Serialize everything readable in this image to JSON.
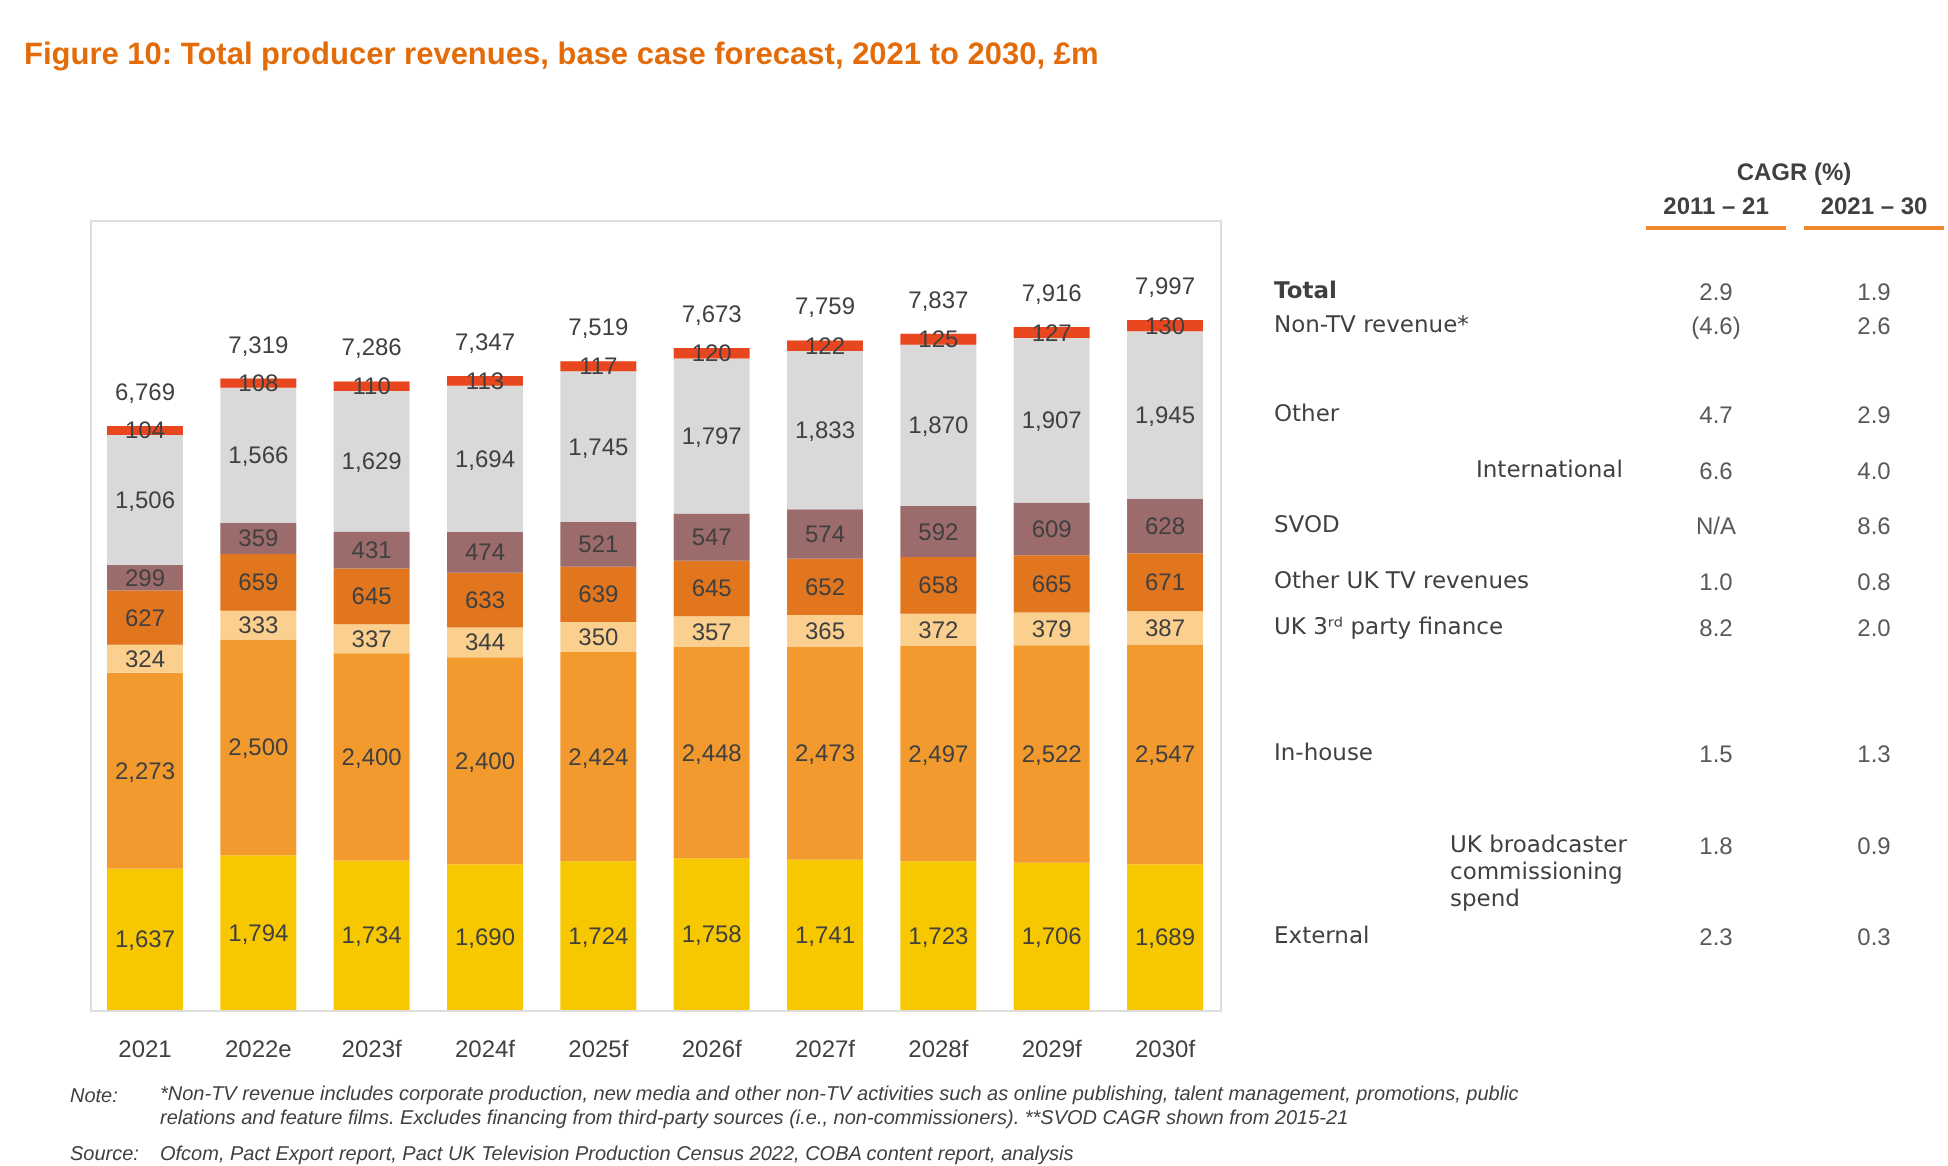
{
  "chart_data": {
    "type": "bar",
    "stacked": true,
    "title": "Figure 10: Total producer revenues, base case forecast, 2021 to 2030, £m",
    "categories": [
      "2021",
      "2022e",
      "2023f",
      "2024f",
      "2025f",
      "2026f",
      "2027f",
      "2028f",
      "2029f",
      "2030f"
    ],
    "series": [
      {
        "name": "External",
        "color": "#f7c800",
        "values": [
          1637,
          1794,
          1734,
          1690,
          1724,
          1758,
          1741,
          1723,
          1706,
          1689
        ],
        "value_labels": [
          "1,637",
          "1,794",
          "1,734",
          "1,690",
          "1,724",
          "1,758",
          "1,741",
          "1,723",
          "1,706",
          "1,689"
        ]
      },
      {
        "name": "In-house",
        "color": "#f29a2e",
        "values": [
          2273,
          2500,
          2400,
          2400,
          2424,
          2448,
          2473,
          2497,
          2522,
          2547
        ],
        "value_labels": [
          "2,273",
          "2,500",
          "2,400",
          "2,400",
          "2,424",
          "2,448",
          "2,473",
          "2,497",
          "2,522",
          "2,547"
        ]
      },
      {
        "name": "UK 3ʳᵈ party finance",
        "color": "#fbd08e",
        "values": [
          324,
          333,
          337,
          344,
          350,
          357,
          365,
          372,
          379,
          387
        ],
        "value_labels": [
          "324",
          "333",
          "337",
          "344",
          "350",
          "357",
          "365",
          "372",
          "379",
          "387"
        ]
      },
      {
        "name": "Other UK TV revenues",
        "color": "#e2761e",
        "values": [
          627,
          659,
          645,
          633,
          639,
          645,
          652,
          658,
          665,
          671
        ],
        "value_labels": [
          "627",
          "659",
          "645",
          "633",
          "639",
          "645",
          "652",
          "658",
          "665",
          "671"
        ]
      },
      {
        "name": "SVOD",
        "color": "#9c6b6b",
        "values": [
          299,
          359,
          431,
          474,
          521,
          547,
          574,
          592,
          609,
          628
        ],
        "value_labels": [
          "299",
          "359",
          "431",
          "474",
          "521",
          "547",
          "574",
          "592",
          "609",
          "628"
        ]
      },
      {
        "name": "Other",
        "color": "#d9d9d9",
        "values": [
          1506,
          1566,
          1629,
          1694,
          1745,
          1797,
          1833,
          1870,
          1907,
          1945
        ],
        "value_labels": [
          "1,506",
          "1,566",
          "1,629",
          "1,694",
          "1,745",
          "1,797",
          "1,833",
          "1,870",
          "1,907",
          "1,945"
        ]
      },
      {
        "name": "Non-TV revenue*",
        "color": "#e8461e",
        "values": [
          104,
          108,
          110,
          113,
          117,
          120,
          122,
          125,
          127,
          130
        ],
        "value_labels": [
          "104",
          "108",
          "110",
          "113",
          "117",
          "120",
          "122",
          "125",
          "127",
          "130"
        ]
      }
    ],
    "totals": [
      "6,769",
      "7,319",
      "7,286",
      "7,347",
      "7,519",
      "7,673",
      "7,759",
      "7,837",
      "7,916",
      "7,997"
    ],
    "annotations": [
      "CAGR (%)",
      "2011 – 21",
      "2021 – 30",
      "Total",
      "International",
      "UK broadcaster commissioning spend",
      "2.9",
      "1.9",
      "(4.6)",
      "2.6",
      "4.7",
      "2.9",
      "6.6",
      "4.0",
      "N/A",
      "8.6",
      "1.0",
      "0.8",
      "8.2",
      "2.0",
      "1.5",
      "1.3",
      "1.8",
      "0.9",
      "2.3",
      "0.3",
      "Note:",
      "*Non-TV revenue includes corporate production, new media and other non-TV activities such as online publishing, talent management, promotions, public relations and feature films. Excludes financing from third-party sources (i.e., non-commissioners). **SVOD CAGR shown from 2015-21",
      "Source:",
      "Ofcom, Pact Export report, Pact UK Television Production Census 2022, COBA content report, analysis"
    ]
  }
}
